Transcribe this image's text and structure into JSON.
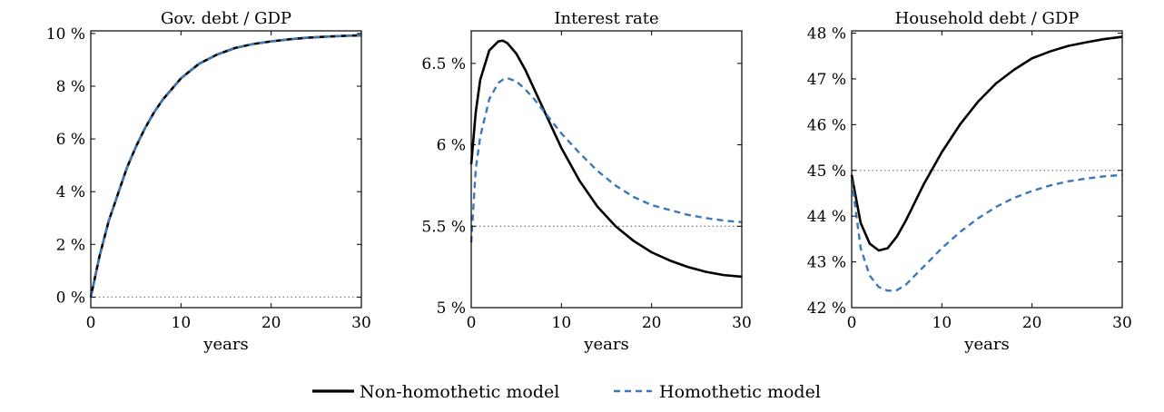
{
  "colors": {
    "non_homothetic": "#000000",
    "homothetic": "#3b78b9",
    "steady_state": "#808080"
  },
  "legend": {
    "items": [
      {
        "label": "Non-homothetic model",
        "color": "#000000",
        "style": "solid"
      },
      {
        "label": "Homothetic model",
        "color": "#3b78b9",
        "style": "dashed"
      }
    ],
    "placement": "bottom-center"
  },
  "chart_data": [
    {
      "type": "line",
      "title": "Gov. debt / GDP",
      "xlabel": "years",
      "ylabel": "",
      "xlim": [
        0,
        30
      ],
      "ylim": [
        -0.4,
        10.1
      ],
      "xticks": [
        0,
        10,
        20,
        30
      ],
      "xtick_labels": [
        "0",
        "10",
        "20",
        "30"
      ],
      "yticks": [
        0,
        2,
        4,
        6,
        8,
        10
      ],
      "ytick_labels": [
        "0 %",
        "2 %",
        "4 %",
        "6 %",
        "8 %",
        "10 %"
      ],
      "grid": false,
      "reference_line": 0,
      "x": [
        0,
        1,
        2,
        3,
        4,
        5,
        6,
        7,
        8,
        9,
        10,
        12,
        14,
        16,
        18,
        20,
        22,
        24,
        26,
        28,
        30
      ],
      "series": [
        {
          "name": "Non-homothetic model",
          "values": [
            0,
            1.6,
            2.9,
            3.9,
            4.9,
            5.7,
            6.4,
            7.0,
            7.5,
            7.9,
            8.3,
            8.85,
            9.2,
            9.45,
            9.6,
            9.7,
            9.78,
            9.84,
            9.88,
            9.91,
            9.93
          ]
        },
        {
          "name": "Homothetic model",
          "values": [
            0,
            1.6,
            2.9,
            3.9,
            4.9,
            5.7,
            6.4,
            7.0,
            7.5,
            7.9,
            8.3,
            8.85,
            9.2,
            9.45,
            9.6,
            9.7,
            9.78,
            9.84,
            9.88,
            9.91,
            9.93
          ]
        }
      ]
    },
    {
      "type": "line",
      "title": "Interest rate",
      "xlabel": "years",
      "ylabel": "",
      "xlim": [
        0,
        30
      ],
      "ylim": [
        5,
        6.7
      ],
      "xticks": [
        0,
        10,
        20,
        30
      ],
      "xtick_labels": [
        "0",
        "10",
        "20",
        "30"
      ],
      "yticks": [
        5,
        5.5,
        6,
        6.5
      ],
      "ytick_labels": [
        "5 %",
        "5.5 %",
        "6 %",
        "6.5 %"
      ],
      "grid": false,
      "reference_line": 5.5,
      "x": [
        0,
        0.5,
        1,
        2,
        3,
        3.5,
        4,
        5,
        6,
        7,
        8,
        9,
        10,
        12,
        14,
        16,
        18,
        20,
        22,
        24,
        26,
        28,
        30
      ],
      "series": [
        {
          "name": "Non-homothetic model",
          "values": [
            5.88,
            6.2,
            6.4,
            6.58,
            6.635,
            6.64,
            6.625,
            6.56,
            6.46,
            6.34,
            6.22,
            6.1,
            5.98,
            5.78,
            5.62,
            5.5,
            5.41,
            5.34,
            5.29,
            5.25,
            5.22,
            5.2,
            5.19
          ]
        },
        {
          "name": "Homothetic model",
          "values": [
            5.4,
            5.85,
            6.05,
            6.28,
            6.38,
            6.4,
            6.41,
            6.39,
            6.34,
            6.28,
            6.21,
            6.14,
            6.07,
            5.95,
            5.84,
            5.75,
            5.68,
            5.63,
            5.6,
            5.57,
            5.55,
            5.535,
            5.525
          ]
        }
      ]
    },
    {
      "type": "line",
      "title": "Household debt / GDP",
      "xlabel": "years",
      "ylabel": "",
      "xlim": [
        0,
        30
      ],
      "ylim": [
        42,
        48.05
      ],
      "xticks": [
        0,
        10,
        20,
        30
      ],
      "xtick_labels": [
        "0",
        "10",
        "20",
        "30"
      ],
      "yticks": [
        42,
        43,
        44,
        45,
        46,
        47,
        48
      ],
      "ytick_labels": [
        "42 %",
        "43 %",
        "44 %",
        "45 %",
        "46 %",
        "47 %",
        "48 %"
      ],
      "grid": false,
      "reference_line": 45,
      "x": [
        0,
        1,
        2,
        3,
        4,
        5,
        6,
        7,
        8,
        9,
        10,
        12,
        14,
        16,
        18,
        20,
        22,
        24,
        26,
        28,
        30
      ],
      "series": [
        {
          "name": "Non-homothetic model",
          "values": [
            44.9,
            43.85,
            43.4,
            43.25,
            43.3,
            43.55,
            43.9,
            44.3,
            44.7,
            45.05,
            45.4,
            46.0,
            46.5,
            46.9,
            47.2,
            47.45,
            47.6,
            47.72,
            47.8,
            47.87,
            47.92
          ]
        },
        {
          "name": "Homothetic model",
          "values": [
            44.8,
            43.3,
            42.7,
            42.45,
            42.37,
            42.38,
            42.5,
            42.7,
            42.9,
            43.1,
            43.3,
            43.65,
            43.95,
            44.2,
            44.4,
            44.55,
            44.67,
            44.76,
            44.82,
            44.87,
            44.9
          ]
        }
      ]
    }
  ]
}
